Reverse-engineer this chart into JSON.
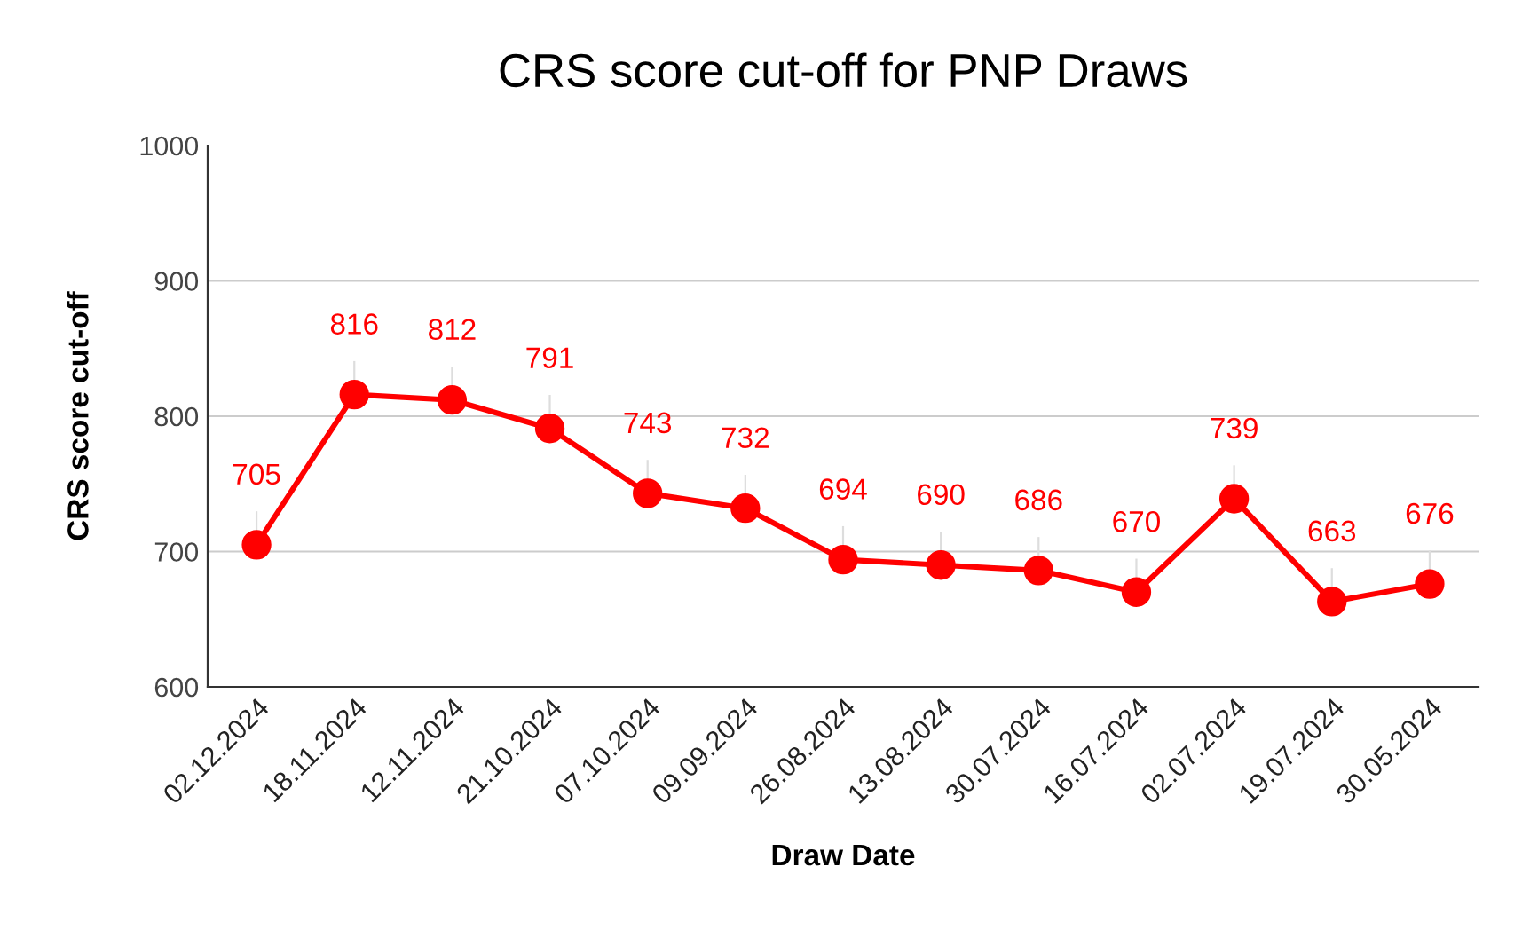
{
  "chart_data": {
    "type": "line",
    "title": "CRS score cut-off for PNP Draws",
    "xlabel": "Draw Date",
    "ylabel": "CRS score cut-off",
    "categories": [
      "02.12.2024",
      "18.11.2024",
      "12.11.2024",
      "21.10.2024",
      "07.10.2024",
      "09.09.2024",
      "26.08.2024",
      "13.08.2024",
      "30.07.2024",
      "16.07.2024",
      "02.07.2024",
      "19.07.2024",
      "30.05.2024"
    ],
    "series": [
      {
        "color": "#ff0000",
        "values": [
          705,
          816,
          812,
          791,
          743,
          732,
          694,
          690,
          686,
          670,
          739,
          663,
          676
        ]
      }
    ],
    "ylim": [
      600,
      1000
    ],
    "yticks": [
      600,
      700,
      800,
      900,
      1000
    ],
    "grid": "y",
    "marker": "circle",
    "line_style": "solid",
    "data_labels": true,
    "legend": false
  }
}
